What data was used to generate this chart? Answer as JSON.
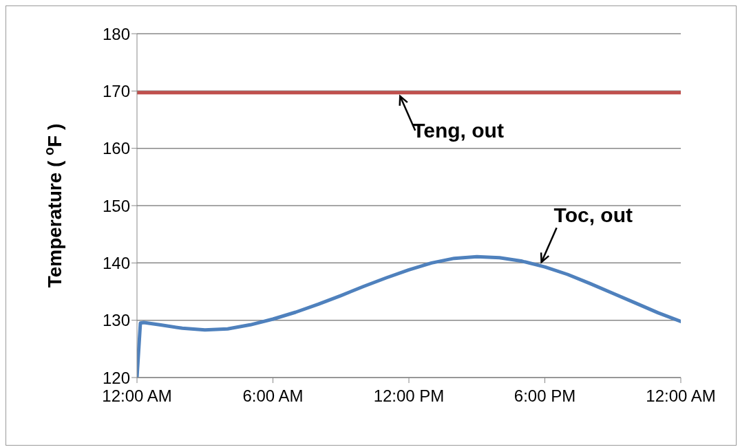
{
  "chart_data": {
    "type": "line",
    "ylabel": "Temperature ( $^{o}$F )",
    "xlim": [
      0,
      24
    ],
    "xticks": [
      {
        "value": 0,
        "label": "12:00 AM"
      },
      {
        "value": 6,
        "label": "6:00 AM"
      },
      {
        "value": 12,
        "label": "12:00 PM"
      },
      {
        "value": 18,
        "label": "6:00 PM"
      },
      {
        "value": 24,
        "label": "12:00 AM"
      }
    ],
    "ylim": [
      120,
      180
    ],
    "yticks": [
      120,
      130,
      140,
      150,
      160,
      170,
      180
    ],
    "grid": "y",
    "legend": false,
    "marker": "none",
    "line_style": "solid",
    "series": [
      {
        "name": "Teng, out",
        "color": "#c0504d",
        "x": [
          0,
          24
        ],
        "values": [
          169.7,
          169.7
        ]
      },
      {
        "name": "Toc, out",
        "color": "#4f81bd",
        "x": [
          0,
          0.15,
          0.3,
          1,
          2,
          3,
          4,
          5,
          6,
          7,
          8,
          9,
          10,
          11,
          12,
          13,
          14,
          15,
          16,
          17,
          18,
          19,
          20,
          21,
          22,
          23,
          24
        ],
        "values": [
          120,
          129.5,
          129.6,
          129.2,
          128.6,
          128.3,
          128.5,
          129.2,
          130.2,
          131.4,
          132.8,
          134.3,
          135.9,
          137.4,
          138.8,
          140,
          140.8,
          141.1,
          140.9,
          140.3,
          139.3,
          138,
          136.4,
          134.7,
          133,
          131.3,
          129.8
        ]
      }
    ]
  }
}
